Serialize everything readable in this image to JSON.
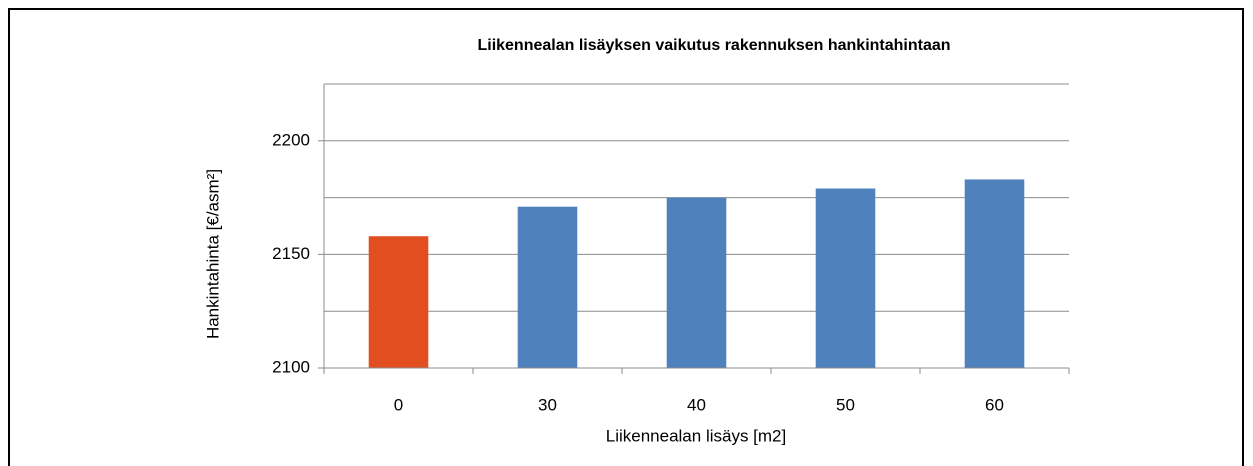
{
  "chart_data": {
    "type": "bar",
    "title": "Liikennealan lisäyksen vaikutus rakennuksen hankintahintaan",
    "x_label": "Liikennealan lisäys [m2]",
    "y_label": "Hankintahinta [€/asm²]",
    "categories": [
      "0",
      "30",
      "40",
      "50",
      "60"
    ],
    "values": [
      2158,
      2171,
      2175,
      2179,
      2183
    ],
    "colors": [
      "#e34e21",
      "#4f81bd",
      "#4f81bd",
      "#4f81bd",
      "#4f81bd"
    ],
    "ylim": [
      2100,
      2225
    ],
    "yticks": [
      2100,
      2150,
      2200
    ],
    "minor_yticks": [
      2125,
      2175,
      2225
    ],
    "grid": true
  }
}
